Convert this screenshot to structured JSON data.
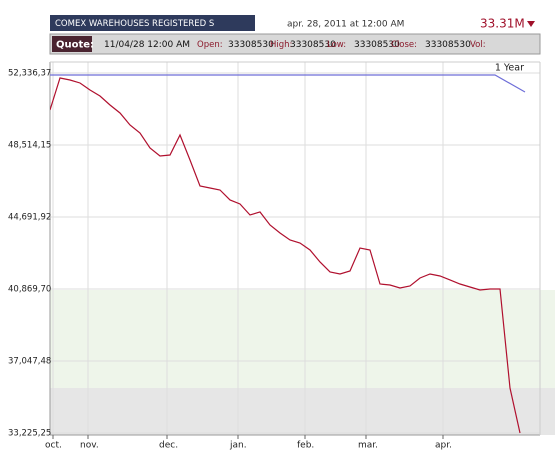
{
  "chart_data": {
    "type": "line",
    "title": "COMEX WAREHOUSES REGISTERED S",
    "date": "apr. 28, 2011 at 12:00 AM",
    "last": "33.31M",
    "range": "1 Year",
    "quote": {
      "label": "Quote:",
      "time": "11/04/28 12:00 AM",
      "fields": [
        {
          "label": "Open:",
          "value": "33308530"
        },
        {
          "label": "High:",
          "value": "33308530"
        },
        {
          "label": "Low:",
          "value": "33308530"
        },
        {
          "label": "Close:",
          "value": "33308530"
        },
        {
          "label": "Vol:",
          "value": ""
        }
      ]
    },
    "color": "#b0102e",
    "values": [
      50372000,
      52071000,
      51965000,
      51806000,
      51434000,
      51115000,
      50638000,
      50213000,
      49576000,
      49151000,
      48355000,
      47930000,
      47983000,
      49045000,
      47718000,
      46338000,
      46231000,
      46125000,
      45595000,
      45382000,
      44798000,
      44958000,
      44268000,
      43843000,
      43472000,
      43312000,
      42941000,
      42304000,
      41773000,
      41666000,
      41826000,
      43046000,
      42941000,
      41135000,
      41082000,
      40923000,
      41029000,
      41454000,
      41666000,
      41560000,
      41348000,
      41135000,
      40976000,
      40817000,
      40870000,
      40870000,
      35614000,
      33225000
    ],
    "xlim": [
      0,
      49
    ],
    "xticks": [
      {
        "value": 0.3,
        "label": "oct."
      },
      {
        "value": 3.8,
        "label": "nov."
      },
      {
        "value": 11.7,
        "label": "dec."
      },
      {
        "value": 18.8,
        "label": "jan."
      },
      {
        "value": 25.5,
        "label": "feb."
      },
      {
        "value": 31.6,
        "label": "mar."
      },
      {
        "value": 39.3,
        "label": "apr."
      }
    ],
    "ylim": [
      33119000,
      52920000
    ],
    "yticks": [
      {
        "value": 52336370,
        "label": "52,336,37"
      },
      {
        "value": 48514150,
        "label": "48,514,15"
      },
      {
        "value": 44691920,
        "label": "44,691,92"
      },
      {
        "value": 40869700,
        "label": "40,869,70"
      },
      {
        "value": 37047480,
        "label": "37,047,48"
      },
      {
        "value": 33225250,
        "label": "33,225,25"
      }
    ],
    "grid": true
  }
}
